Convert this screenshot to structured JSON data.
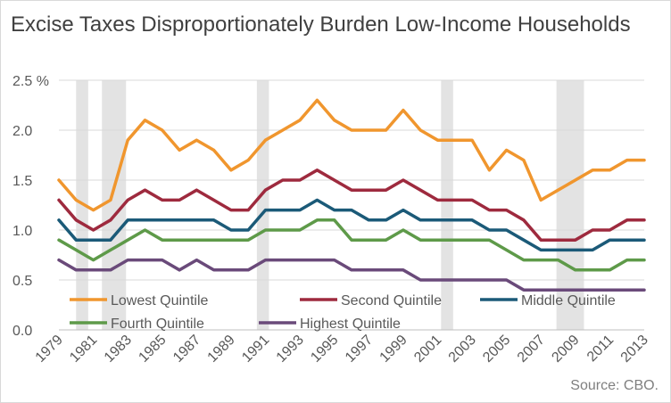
{
  "title": "Excise Taxes Disproportionately Burden Low-Income Households",
  "source": "Source: CBO.",
  "chart_data": {
    "type": "line",
    "title": "Excise Taxes Disproportionately Burden Low-Income Households",
    "xlabel": "",
    "ylabel": "",
    "ylim": [
      0,
      2.5
    ],
    "yticks": [
      "0.0",
      "0.5",
      "1.0",
      "1.5",
      "2.0",
      "2.5 %"
    ],
    "xticks": [
      "1979",
      "1981",
      "1983",
      "1985",
      "1987",
      "1989",
      "1991",
      "1993",
      "1995",
      "1997",
      "1999",
      "2001",
      "2003",
      "2005",
      "2007",
      "2009",
      "2011",
      "2013"
    ],
    "x": [
      1979,
      1980,
      1981,
      1982,
      1983,
      1984,
      1985,
      1986,
      1987,
      1988,
      1989,
      1990,
      1991,
      1992,
      1993,
      1994,
      1995,
      1996,
      1997,
      1998,
      1999,
      2000,
      2001,
      2002,
      2003,
      2004,
      2005,
      2006,
      2007,
      2008,
      2009,
      2010,
      2011,
      2012,
      2013
    ],
    "recessions": [
      [
        1980.0,
        1980.7
      ],
      [
        1981.5,
        1982.9
      ],
      [
        1990.5,
        1991.2
      ],
      [
        2001.2,
        2001.9
      ],
      [
        2007.9,
        2009.5
      ]
    ],
    "grid": true,
    "legend_position": "bottom-inside",
    "series": [
      {
        "name": "Lowest Quintile",
        "color": "#f0962e",
        "values": [
          1.5,
          1.3,
          1.2,
          1.3,
          1.9,
          2.1,
          2.0,
          1.8,
          1.9,
          1.8,
          1.6,
          1.7,
          1.9,
          2.0,
          2.1,
          2.3,
          2.1,
          2.0,
          2.0,
          2.0,
          2.2,
          2.0,
          1.9,
          1.9,
          1.9,
          1.6,
          1.8,
          1.7,
          1.3,
          1.4,
          1.5,
          1.6,
          1.6,
          1.7,
          1.7
        ]
      },
      {
        "name": "Second Quintile",
        "color": "#9e2a3e",
        "values": [
          1.3,
          1.1,
          1.0,
          1.1,
          1.3,
          1.4,
          1.3,
          1.3,
          1.4,
          1.3,
          1.2,
          1.2,
          1.4,
          1.5,
          1.5,
          1.6,
          1.5,
          1.4,
          1.4,
          1.4,
          1.5,
          1.4,
          1.3,
          1.3,
          1.3,
          1.2,
          1.2,
          1.1,
          0.9,
          0.9,
          0.9,
          1.0,
          1.0,
          1.1,
          1.1
        ]
      },
      {
        "name": "Middle Quintile",
        "color": "#1b5a78",
        "values": [
          1.1,
          0.9,
          0.9,
          0.9,
          1.1,
          1.1,
          1.1,
          1.1,
          1.1,
          1.1,
          1.0,
          1.0,
          1.2,
          1.2,
          1.2,
          1.3,
          1.2,
          1.2,
          1.1,
          1.1,
          1.2,
          1.1,
          1.1,
          1.1,
          1.1,
          1.0,
          1.0,
          0.9,
          0.8,
          0.8,
          0.8,
          0.8,
          0.9,
          0.9,
          0.9
        ]
      },
      {
        "name": "Fourth Quintile",
        "color": "#5e9a49",
        "values": [
          0.9,
          0.8,
          0.7,
          0.8,
          0.9,
          1.0,
          0.9,
          0.9,
          0.9,
          0.9,
          0.9,
          0.9,
          1.0,
          1.0,
          1.0,
          1.1,
          1.1,
          0.9,
          0.9,
          0.9,
          1.0,
          0.9,
          0.9,
          0.9,
          0.9,
          0.9,
          0.8,
          0.7,
          0.7,
          0.7,
          0.6,
          0.6,
          0.6,
          0.7,
          0.7
        ]
      },
      {
        "name": "Highest Quintile",
        "color": "#6a4a7a",
        "values": [
          0.7,
          0.6,
          0.6,
          0.6,
          0.7,
          0.7,
          0.7,
          0.6,
          0.7,
          0.6,
          0.6,
          0.6,
          0.7,
          0.7,
          0.7,
          0.7,
          0.7,
          0.6,
          0.6,
          0.6,
          0.6,
          0.5,
          0.5,
          0.5,
          0.5,
          0.5,
          0.5,
          0.4,
          0.4,
          0.4,
          0.4,
          0.4,
          0.4,
          0.4,
          0.4
        ]
      }
    ]
  }
}
